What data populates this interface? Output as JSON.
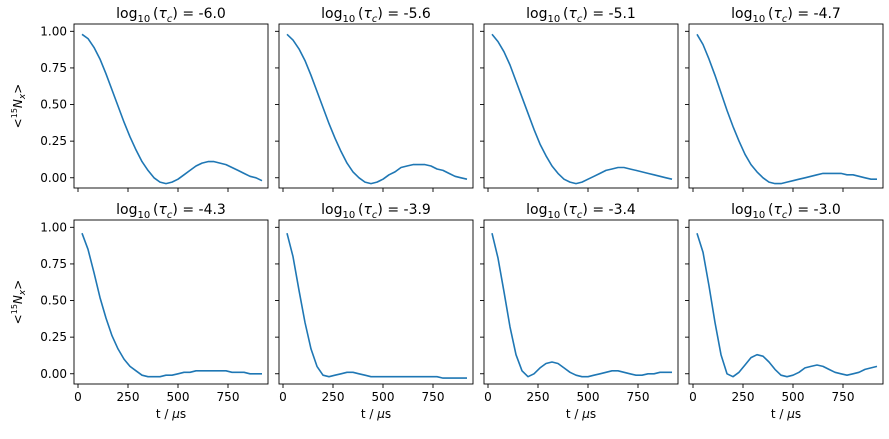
{
  "figure": {
    "ylabel": "<15Nx>",
    "xlabel": "t / μs",
    "line_color": "#1f77b4"
  },
  "chart_data": [
    {
      "type": "line",
      "title": "log10(τc) = -6.0",
      "title_value": "-6.0",
      "xlabel": "",
      "ylabel": "<15Nx>",
      "xlim": [
        -20,
        950
      ],
      "ylim": [
        -0.07,
        1.05
      ],
      "x": [
        20,
        50,
        80,
        110,
        140,
        170,
        200,
        230,
        260,
        290,
        320,
        350,
        380,
        410,
        440,
        470,
        500,
        530,
        560,
        590,
        620,
        650,
        680,
        710,
        740,
        770,
        800,
        830,
        860,
        890,
        920
      ],
      "y": [
        0.98,
        0.95,
        0.89,
        0.81,
        0.71,
        0.6,
        0.49,
        0.38,
        0.28,
        0.19,
        0.11,
        0.05,
        0.0,
        -0.03,
        -0.04,
        -0.03,
        -0.01,
        0.02,
        0.05,
        0.08,
        0.1,
        0.11,
        0.11,
        0.1,
        0.09,
        0.07,
        0.05,
        0.03,
        0.01,
        0.0,
        -0.02
      ]
    },
    {
      "type": "line",
      "title": "log10(τc) = -5.6",
      "title_value": "-5.6",
      "xlabel": "",
      "ylabel": "",
      "xlim": [
        -20,
        950
      ],
      "ylim": [
        -0.07,
        1.05
      ],
      "x": [
        20,
        50,
        80,
        110,
        140,
        170,
        200,
        230,
        260,
        290,
        320,
        350,
        380,
        410,
        440,
        470,
        500,
        530,
        560,
        590,
        620,
        650,
        680,
        710,
        740,
        770,
        800,
        830,
        860,
        890,
        920
      ],
      "y": [
        0.98,
        0.94,
        0.88,
        0.8,
        0.7,
        0.59,
        0.48,
        0.37,
        0.27,
        0.18,
        0.1,
        0.04,
        0.0,
        -0.03,
        -0.04,
        -0.03,
        -0.01,
        0.02,
        0.04,
        0.07,
        0.08,
        0.09,
        0.09,
        0.09,
        0.08,
        0.06,
        0.05,
        0.03,
        0.01,
        0.0,
        -0.01
      ]
    },
    {
      "type": "line",
      "title": "log10(τc) = -5.1",
      "title_value": "-5.1",
      "xlabel": "",
      "ylabel": "",
      "xlim": [
        -20,
        950
      ],
      "ylim": [
        -0.07,
        1.05
      ],
      "x": [
        20,
        50,
        80,
        110,
        140,
        170,
        200,
        230,
        260,
        290,
        320,
        350,
        380,
        410,
        440,
        470,
        500,
        530,
        560,
        590,
        620,
        650,
        680,
        710,
        740,
        770,
        800,
        830,
        860,
        890,
        920
      ],
      "y": [
        0.98,
        0.93,
        0.86,
        0.77,
        0.66,
        0.55,
        0.44,
        0.33,
        0.23,
        0.15,
        0.08,
        0.03,
        -0.01,
        -0.03,
        -0.04,
        -0.03,
        -0.01,
        0.01,
        0.03,
        0.05,
        0.06,
        0.07,
        0.07,
        0.06,
        0.05,
        0.04,
        0.03,
        0.02,
        0.01,
        0.0,
        -0.01
      ]
    },
    {
      "type": "line",
      "title": "log10(τc) = -4.7",
      "title_value": "-4.7",
      "xlabel": "",
      "ylabel": "",
      "xlim": [
        -20,
        950
      ],
      "ylim": [
        -0.07,
        1.05
      ],
      "x": [
        20,
        50,
        80,
        110,
        140,
        170,
        200,
        230,
        260,
        290,
        320,
        350,
        380,
        410,
        440,
        470,
        500,
        530,
        560,
        590,
        620,
        650,
        680,
        710,
        740,
        770,
        800,
        830,
        860,
        890,
        920
      ],
      "y": [
        0.98,
        0.91,
        0.81,
        0.7,
        0.58,
        0.46,
        0.35,
        0.25,
        0.16,
        0.09,
        0.04,
        0.0,
        -0.03,
        -0.04,
        -0.04,
        -0.03,
        -0.02,
        -0.01,
        0.0,
        0.01,
        0.02,
        0.03,
        0.03,
        0.03,
        0.03,
        0.02,
        0.02,
        0.01,
        0.0,
        -0.01,
        -0.01
      ]
    },
    {
      "type": "line",
      "title": "log10(τc) = -4.3",
      "title_value": "-4.3",
      "xlabel": "t / μs",
      "ylabel": "<15Nx>",
      "xlim": [
        -20,
        950
      ],
      "ylim": [
        -0.07,
        1.05
      ],
      "x": [
        20,
        50,
        80,
        110,
        140,
        170,
        200,
        230,
        260,
        290,
        320,
        350,
        380,
        410,
        440,
        470,
        500,
        530,
        560,
        590,
        620,
        650,
        680,
        710,
        740,
        770,
        800,
        830,
        860,
        890,
        920
      ],
      "y": [
        0.96,
        0.85,
        0.69,
        0.52,
        0.38,
        0.26,
        0.17,
        0.1,
        0.05,
        0.02,
        -0.01,
        -0.02,
        -0.02,
        -0.02,
        -0.01,
        -0.01,
        0.0,
        0.01,
        0.01,
        0.02,
        0.02,
        0.02,
        0.02,
        0.02,
        0.02,
        0.01,
        0.01,
        0.01,
        0.0,
        0.0,
        0.0
      ]
    },
    {
      "type": "line",
      "title": "log10(τc) = -3.9",
      "title_value": "-3.9",
      "xlabel": "t / μs",
      "ylabel": "",
      "xlim": [
        -20,
        950
      ],
      "ylim": [
        -0.07,
        1.05
      ],
      "x": [
        20,
        50,
        80,
        110,
        140,
        170,
        200,
        230,
        260,
        290,
        320,
        350,
        380,
        410,
        440,
        470,
        500,
        530,
        560,
        590,
        620,
        650,
        680,
        710,
        740,
        770,
        800,
        830,
        860,
        890,
        920
      ],
      "y": [
        0.96,
        0.8,
        0.57,
        0.35,
        0.17,
        0.05,
        -0.01,
        -0.02,
        -0.01,
        0.0,
        0.01,
        0.01,
        0.0,
        -0.01,
        -0.02,
        -0.02,
        -0.02,
        -0.02,
        -0.02,
        -0.02,
        -0.02,
        -0.02,
        -0.02,
        -0.02,
        -0.02,
        -0.02,
        -0.03,
        -0.03,
        -0.03,
        -0.03,
        -0.03
      ]
    },
    {
      "type": "line",
      "title": "log10(τc) = -3.4",
      "title_value": "-3.4",
      "xlabel": "t / μs",
      "ylabel": "",
      "xlim": [
        -20,
        950
      ],
      "ylim": [
        -0.07,
        1.05
      ],
      "x": [
        20,
        50,
        80,
        110,
        140,
        170,
        200,
        230,
        260,
        290,
        320,
        350,
        380,
        410,
        440,
        470,
        500,
        530,
        560,
        590,
        620,
        650,
        680,
        710,
        740,
        770,
        800,
        830,
        860,
        890,
        920
      ],
      "y": [
        0.96,
        0.79,
        0.56,
        0.32,
        0.13,
        0.02,
        -0.02,
        0.0,
        0.04,
        0.07,
        0.08,
        0.07,
        0.04,
        0.01,
        -0.01,
        -0.02,
        -0.02,
        -0.01,
        0.0,
        0.01,
        0.02,
        0.02,
        0.01,
        0.0,
        -0.01,
        -0.01,
        0.0,
        0.0,
        0.01,
        0.01,
        0.01
      ]
    },
    {
      "type": "line",
      "title": "log10(τc) = -3.0",
      "title_value": "-3.0",
      "xlabel": "t / μs",
      "ylabel": "",
      "xlim": [
        -20,
        950
      ],
      "ylim": [
        -0.07,
        1.05
      ],
      "x": [
        20,
        50,
        80,
        110,
        140,
        170,
        200,
        230,
        260,
        290,
        320,
        350,
        380,
        410,
        440,
        470,
        500,
        530,
        560,
        590,
        620,
        650,
        680,
        710,
        740,
        770,
        800,
        830,
        860,
        890,
        920
      ],
      "y": [
        0.96,
        0.83,
        0.6,
        0.35,
        0.13,
        0.0,
        -0.02,
        0.01,
        0.06,
        0.11,
        0.13,
        0.12,
        0.08,
        0.03,
        -0.01,
        -0.02,
        -0.01,
        0.01,
        0.04,
        0.05,
        0.06,
        0.05,
        0.03,
        0.01,
        0.0,
        -0.01,
        0.0,
        0.01,
        0.03,
        0.04,
        0.05
      ]
    }
  ],
  "axes": {
    "xticks": [
      0,
      250,
      500,
      750
    ],
    "xtick_labels": [
      "0",
      "250",
      "500",
      "750"
    ],
    "yticks": [
      0.0,
      0.25,
      0.5,
      0.75,
      1.0
    ],
    "ytick_labels": [
      "0.00",
      "0.25",
      "0.50",
      "0.75",
      "1.00"
    ]
  }
}
